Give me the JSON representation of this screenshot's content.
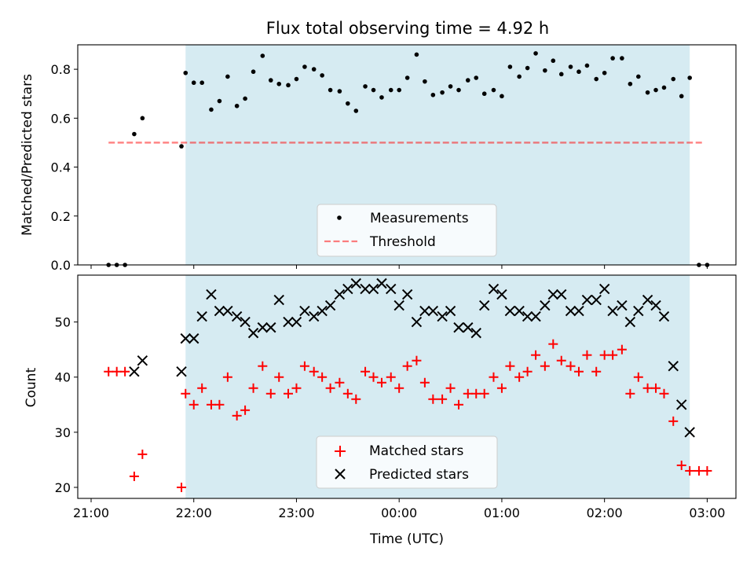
{
  "chart_data": [
    {
      "type": "scatter",
      "title": "Flux total observing time = 4.92 h",
      "xlabel": "",
      "ylabel": "Matched/Predicted stars",
      "ylim": [
        0,
        0.9
      ],
      "yticks": [
        "0.0",
        "0.2",
        "0.4",
        "0.6",
        "0.8"
      ],
      "shaded_region_hours": [
        21.92,
        26.83
      ],
      "shade_color": "#add8e6",
      "threshold": {
        "name": "Threshold",
        "value": 0.5,
        "x_range_hours": [
          21.17,
          26.97
        ],
        "color": "#ff0000"
      },
      "series": [
        {
          "name": "Measurements",
          "marker": "dot",
          "color": "#000000",
          "x_hours": [
            21.17,
            21.25,
            21.33,
            21.42,
            21.5,
            21.88,
            21.92,
            22.0,
            22.08,
            22.17,
            22.25,
            22.33,
            22.42,
            22.5,
            22.58,
            22.67,
            22.75,
            22.83,
            22.92,
            23.0,
            23.08,
            23.17,
            23.25,
            23.33,
            23.42,
            23.5,
            23.58,
            23.67,
            23.75,
            23.83,
            23.92,
            24.0,
            24.08,
            24.17,
            24.25,
            24.33,
            24.42,
            24.5,
            24.58,
            24.67,
            24.75,
            24.83,
            24.92,
            25.0,
            25.08,
            25.17,
            25.25,
            25.33,
            25.42,
            25.5,
            25.58,
            25.67,
            25.75,
            25.83,
            25.92,
            26.0,
            26.08,
            26.17,
            26.25,
            26.33,
            26.42,
            26.5,
            26.58,
            26.67,
            26.75,
            26.83,
            26.92,
            27.0
          ],
          "values": [
            0,
            0,
            0,
            0.535,
            0.6,
            0.485,
            0.785,
            0.745,
            0.745,
            0.635,
            0.67,
            0.77,
            0.65,
            0.68,
            0.79,
            0.855,
            0.755,
            0.74,
            0.735,
            0.76,
            0.81,
            0.8,
            0.775,
            0.715,
            0.71,
            0.66,
            0.63,
            0.73,
            0.715,
            0.685,
            0.715,
            0.715,
            0.765,
            0.86,
            0.75,
            0.695,
            0.705,
            0.73,
            0.715,
            0.755,
            0.765,
            0.7,
            0.715,
            0.69,
            0.81,
            0.77,
            0.805,
            0.865,
            0.795,
            0.835,
            0.78,
            0.81,
            0.79,
            0.815,
            0.76,
            0.785,
            0.845,
            0.845,
            0.74,
            0.77,
            0.705,
            0.715,
            0.725,
            0.76,
            0.69,
            0.765,
            0,
            0
          ]
        }
      ],
      "legend": [
        "Measurements",
        "Threshold"
      ],
      "legend_position": "lower-center"
    },
    {
      "type": "scatter",
      "title": "",
      "xlabel": "Time (UTC)",
      "ylabel": "Count",
      "ylim": [
        18,
        58.5
      ],
      "yticks": [
        "20",
        "30",
        "40",
        "50"
      ],
      "xlim_hours": [
        20.87,
        27.28
      ],
      "xticks": [
        "21:00",
        "22:00",
        "23:00",
        "00:00",
        "01:00",
        "02:00",
        "03:00"
      ],
      "shaded_region_hours": [
        21.92,
        26.83
      ],
      "shade_color": "#add8e6",
      "series": [
        {
          "name": "Matched stars",
          "marker": "plus",
          "color": "#ff0000",
          "x_hours": [
            21.17,
            21.25,
            21.33,
            21.42,
            21.5,
            21.88,
            21.92,
            22.0,
            22.08,
            22.17,
            22.25,
            22.33,
            22.42,
            22.5,
            22.58,
            22.67,
            22.75,
            22.83,
            22.92,
            23.0,
            23.08,
            23.17,
            23.25,
            23.33,
            23.42,
            23.5,
            23.58,
            23.67,
            23.75,
            23.83,
            23.92,
            24.0,
            24.08,
            24.17,
            24.25,
            24.33,
            24.42,
            24.5,
            24.58,
            24.67,
            24.75,
            24.83,
            24.92,
            25.0,
            25.08,
            25.17,
            25.25,
            25.33,
            25.42,
            25.5,
            25.58,
            25.67,
            25.75,
            25.83,
            25.92,
            26.0,
            26.08,
            26.17,
            26.25,
            26.33,
            26.42,
            26.5,
            26.58,
            26.67,
            26.75,
            26.83,
            26.92,
            27.0
          ],
          "values": [
            41,
            41,
            41,
            22,
            26,
            20,
            37,
            35,
            38,
            35,
            35,
            40,
            33,
            34,
            38,
            42,
            37,
            40,
            37,
            38,
            42,
            41,
            40,
            38,
            39,
            37,
            36,
            41,
            40,
            39,
            40,
            38,
            42,
            43,
            39,
            36,
            36,
            38,
            35,
            37,
            37,
            37,
            40,
            38,
            42,
            40,
            41,
            44,
            42,
            46,
            43,
            42,
            41,
            44,
            41,
            44,
            44,
            45,
            37,
            40,
            38,
            38,
            37,
            32,
            24,
            23,
            23,
            23
          ]
        },
        {
          "name": "Predicted stars",
          "marker": "x",
          "color": "#000000",
          "x_hours": [
            21.42,
            21.5,
            21.88,
            21.92,
            22.0,
            22.08,
            22.17,
            22.25,
            22.33,
            22.42,
            22.5,
            22.58,
            22.67,
            22.75,
            22.83,
            22.92,
            23.0,
            23.08,
            23.17,
            23.25,
            23.33,
            23.42,
            23.5,
            23.58,
            23.67,
            23.75,
            23.83,
            23.92,
            24.0,
            24.08,
            24.17,
            24.25,
            24.33,
            24.42,
            24.5,
            24.58,
            24.67,
            24.75,
            24.83,
            24.92,
            25.0,
            25.08,
            25.17,
            25.25,
            25.33,
            25.42,
            25.5,
            25.58,
            25.67,
            25.75,
            25.83,
            25.92,
            26.0,
            26.08,
            26.17,
            26.25,
            26.33,
            26.42,
            26.5,
            26.58,
            26.67,
            26.75,
            26.83
          ],
          "values": [
            41,
            43,
            41,
            47,
            47,
            51,
            55,
            52,
            52,
            51,
            50,
            48,
            49,
            49,
            54,
            50,
            50,
            52,
            51,
            52,
            53,
            55,
            56,
            57,
            56,
            56,
            57,
            56,
            53,
            55,
            50,
            52,
            52,
            51,
            52,
            49,
            49,
            48,
            53,
            56,
            55,
            52,
            52,
            51,
            51,
            53,
            55,
            55,
            52,
            52,
            54,
            54,
            56,
            52,
            53,
            50,
            52,
            54,
            53,
            51,
            42,
            35,
            30
          ]
        }
      ],
      "legend": [
        "Matched stars",
        "Predicted stars"
      ],
      "legend_position": "lower-center"
    }
  ]
}
